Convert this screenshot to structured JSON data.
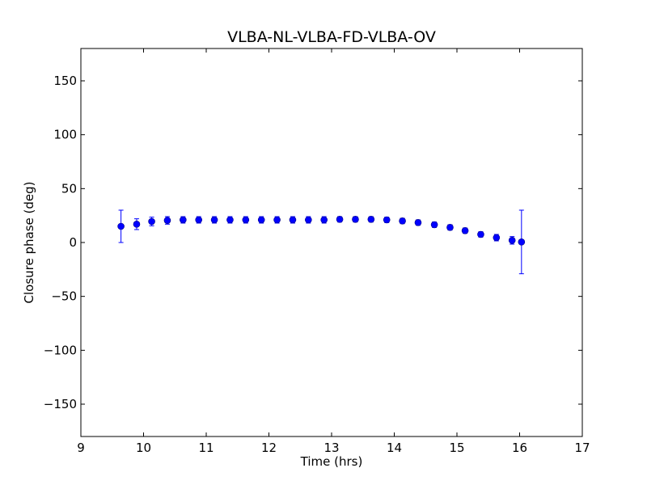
{
  "chart_data": {
    "type": "scatter",
    "title": "VLBA-NL-VLBA-FD-VLBA-OV",
    "xlabel": "Time (hrs)",
    "ylabel": "Closure phase (deg)",
    "xlim": [
      9,
      17
    ],
    "ylim": [
      -180,
      180
    ],
    "xticks": [
      9,
      10,
      11,
      12,
      13,
      14,
      15,
      16,
      17
    ],
    "xtick_labels": [
      "9",
      "10",
      "11",
      "12",
      "13",
      "14",
      "15",
      "16",
      "17"
    ],
    "yticks": [
      150,
      100,
      50,
      0,
      -50,
      -100,
      -150
    ],
    "ytick_labels": [
      "150",
      "100",
      "50",
      "0",
      "−50",
      "−100",
      "−150"
    ],
    "grid": false,
    "marker_color": "#0000ff",
    "points": [
      {
        "x": 9.64,
        "y": 15.0,
        "err": 15.0
      },
      {
        "x": 9.89,
        "y": 17.0,
        "err": 5.0
      },
      {
        "x": 10.13,
        "y": 19.5,
        "err": 4.0
      },
      {
        "x": 10.38,
        "y": 20.5,
        "err": 3.5
      },
      {
        "x": 10.63,
        "y": 21.0,
        "err": 3.0
      },
      {
        "x": 10.88,
        "y": 21.0,
        "err": 3.0
      },
      {
        "x": 11.13,
        "y": 21.0,
        "err": 3.0
      },
      {
        "x": 11.38,
        "y": 21.0,
        "err": 3.0
      },
      {
        "x": 11.63,
        "y": 21.0,
        "err": 3.0
      },
      {
        "x": 11.88,
        "y": 21.0,
        "err": 3.0
      },
      {
        "x": 12.13,
        "y": 21.0,
        "err": 3.0
      },
      {
        "x": 12.38,
        "y": 21.0,
        "err": 3.0
      },
      {
        "x": 12.63,
        "y": 21.0,
        "err": 3.0
      },
      {
        "x": 12.88,
        "y": 21.0,
        "err": 3.0
      },
      {
        "x": 13.13,
        "y": 21.5,
        "err": 2.5
      },
      {
        "x": 13.38,
        "y": 21.5,
        "err": 2.5
      },
      {
        "x": 13.63,
        "y": 21.5,
        "err": 2.5
      },
      {
        "x": 13.88,
        "y": 21.0,
        "err": 2.5
      },
      {
        "x": 14.13,
        "y": 20.0,
        "err": 2.5
      },
      {
        "x": 14.38,
        "y": 18.5,
        "err": 2.5
      },
      {
        "x": 14.64,
        "y": 16.5,
        "err": 2.5
      },
      {
        "x": 14.89,
        "y": 14.0,
        "err": 2.5
      },
      {
        "x": 15.13,
        "y": 11.0,
        "err": 2.5
      },
      {
        "x": 15.38,
        "y": 7.5,
        "err": 2.5
      },
      {
        "x": 15.63,
        "y": 4.5,
        "err": 3.0
      },
      {
        "x": 15.88,
        "y": 2.0,
        "err": 3.5
      },
      {
        "x": 16.03,
        "y": 0.5,
        "err": 29.5
      }
    ]
  }
}
